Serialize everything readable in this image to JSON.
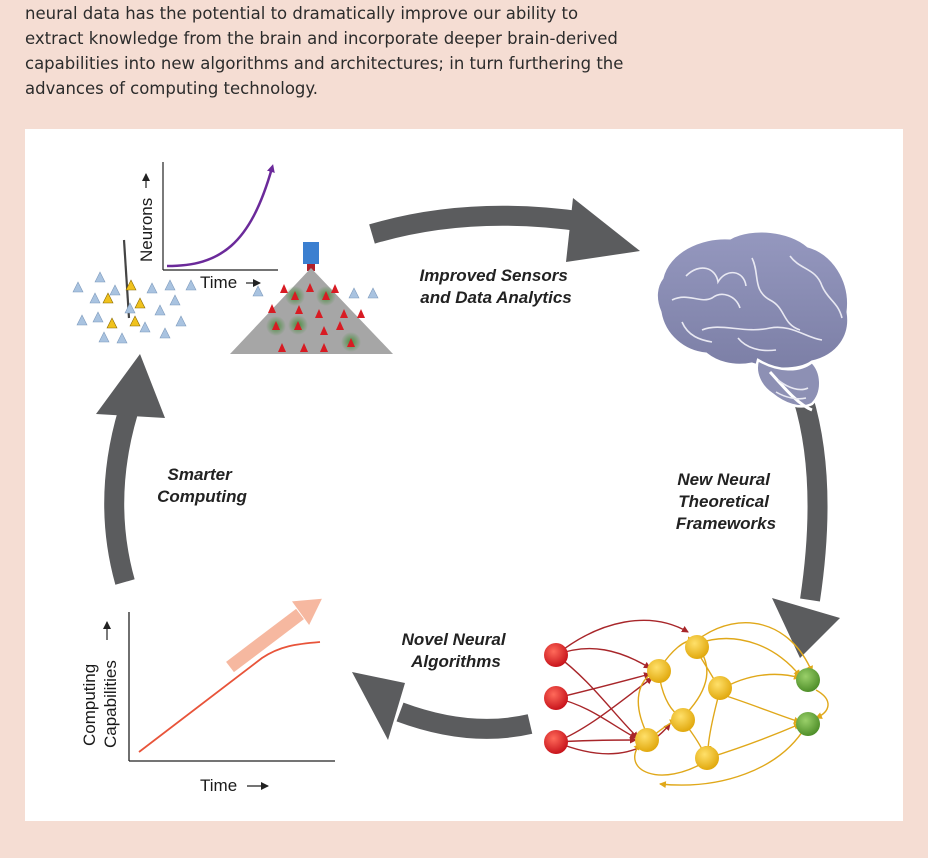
{
  "intro": {
    "lines": [
      "neural data has the potential to dramatically improve our ability to",
      "extract knowledge from the brain and incorporate deeper brain-derived",
      "capabilities into new algorithms and architectures; in turn furthering the",
      "advances of computing technology."
    ]
  },
  "cycle": {
    "sensors": [
      "Improved Sensors",
      "and Data Analytics"
    ],
    "frameworks": [
      "New Neural",
      "Theoretical",
      "Frameworks"
    ],
    "algorithms": [
      "Novel Neural",
      "Algorithms"
    ],
    "computing": [
      "Smarter",
      "Computing"
    ]
  },
  "neurons_chart": {
    "ylabel": "Neurons",
    "xlabel": "Time",
    "arrow": "→"
  },
  "computing_chart": {
    "ylabel_line1": "Computing",
    "ylabel_line2": "Capabilities",
    "xlabel": "Time",
    "arrow": "⟶"
  },
  "colors": {
    "background": "#f5ddd3",
    "cycle_arrow": "#5b5c5e",
    "growth_curve": "#6b2a9a",
    "brain": "#8d90b4",
    "input_node": "#dd1f26",
    "hidden_node": "#f2c118",
    "output_node": "#6aa63c",
    "capability_line": "#e8543a",
    "trend_arrow": "#f6b8a0"
  }
}
